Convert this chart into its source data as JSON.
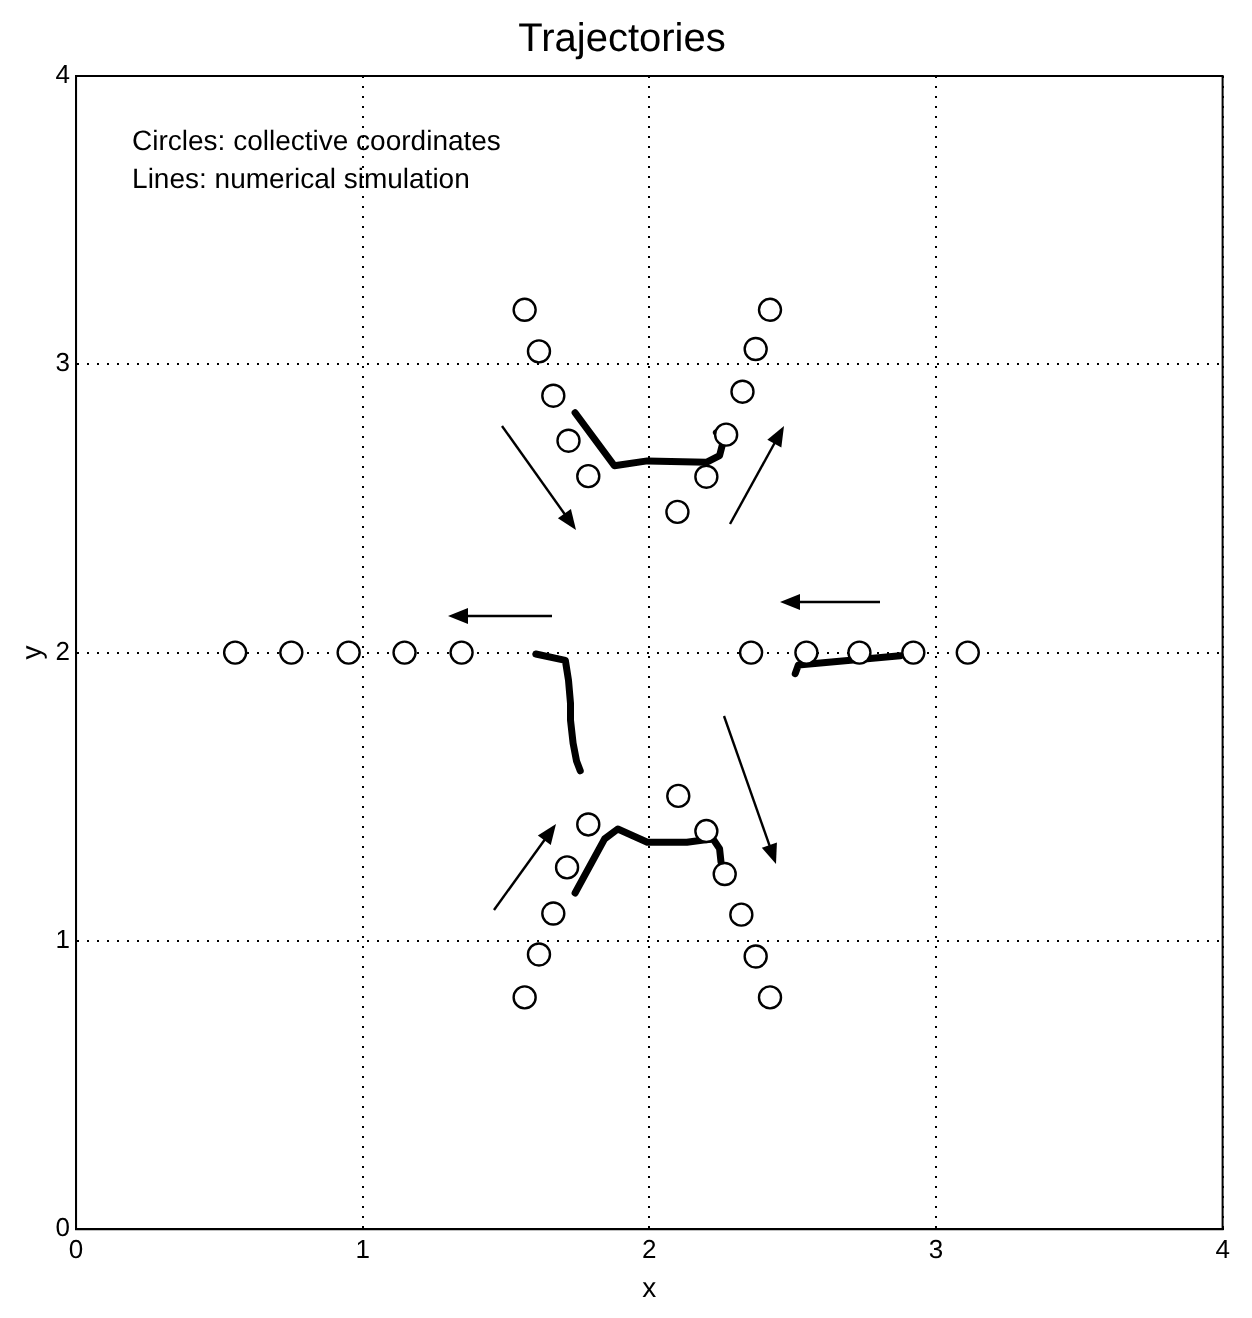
{
  "chart_data": {
    "type": "scatter",
    "title": "Trajectories",
    "xlabel": "x",
    "ylabel": "y",
    "annotations": [
      "Circles: collective coordinates",
      "Lines: numerical simulation"
    ],
    "xlim": [
      0,
      4
    ],
    "ylim": [
      0,
      4
    ],
    "xticks": [
      0,
      1,
      2,
      3,
      4
    ],
    "yticks": [
      0,
      1,
      2,
      3,
      4
    ],
    "grid": true,
    "marker": "circle",
    "series": [
      {
        "color": "#000000",
        "x": [
          1.565,
          1.615,
          1.665,
          1.718,
          1.787,
          2.421,
          2.371,
          2.325,
          2.268,
          2.199,
          2.098,
          0.555,
          0.751,
          0.951,
          1.146,
          1.345,
          2.355,
          2.548,
          2.733,
          2.921,
          3.111,
          1.787,
          1.713,
          1.665,
          1.615,
          1.565,
          2.101,
          2.199,
          2.263,
          2.321,
          2.371,
          2.421
        ],
        "values": [
          3.189,
          3.045,
          2.891,
          2.735,
          2.612,
          3.189,
          3.053,
          2.905,
          2.756,
          2.61,
          2.488,
          2.0,
          2.0,
          2.0,
          2.0,
          2.0,
          2.0,
          2.0,
          2.0,
          2.0,
          2.0,
          1.404,
          1.255,
          1.095,
          0.953,
          0.804,
          1.503,
          1.381,
          1.232,
          1.091,
          0.946,
          0.804
        ]
      },
      {
        "type": "line",
        "color": "#000000",
        "marker": "none",
        "x": [
          1.741,
          1.878,
          1.993,
          2.199,
          2.245,
          2.257,
          2.234
        ],
        "values": [
          2.832,
          2.648,
          2.665,
          2.66,
          2.683,
          2.729,
          2.763
        ]
      },
      {
        "type": "line",
        "color": "#000000",
        "marker": "none",
        "x": [
          1.604,
          1.707,
          1.718,
          1.725,
          1.725,
          1.734,
          1.746,
          1.759
        ],
        "values": [
          1.995,
          1.973,
          1.904,
          1.824,
          1.766,
          1.686,
          1.624,
          1.59
        ]
      },
      {
        "type": "line",
        "color": "#000000",
        "marker": "none",
        "x": [
          2.509,
          2.52,
          2.875
        ],
        "values": [
          1.927,
          1.957,
          1.989
        ]
      },
      {
        "type": "line",
        "color": "#000000",
        "marker": "none",
        "x": [
          1.741,
          1.844,
          1.89,
          1.993,
          2.131,
          2.222,
          2.245,
          2.25
        ],
        "values": [
          1.166,
          1.354,
          1.388,
          1.342,
          1.342,
          1.354,
          1.32,
          1.274
        ]
      }
    ]
  }
}
